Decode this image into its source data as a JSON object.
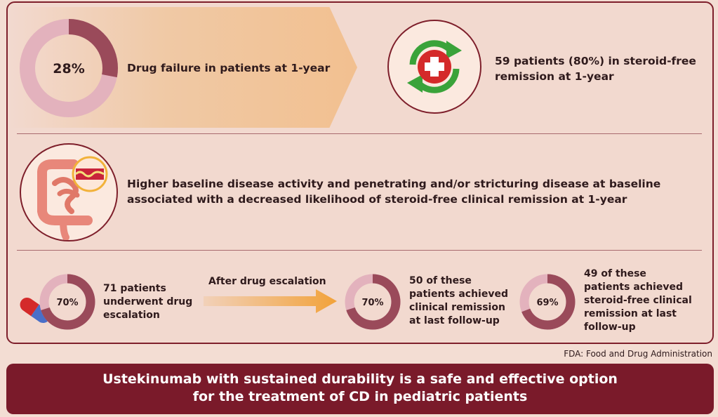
{
  "row1": {
    "donut_label": "28%",
    "donut_value": 0.28,
    "text": "Drug failure in patients at 1-year",
    "remission_text_line1": "59 patients (80%) in steroid-free",
    "remission_text_line2": "remission at 1-year"
  },
  "row2": {
    "text_line1": "Higher baseline disease activity and penetrating and/or stricturing disease at baseline",
    "text_line2": "associated with a decreased likelihood of steroid-free clinical remission at 1-year"
  },
  "row3": {
    "donut1": {
      "label": "70%",
      "value": 0.7
    },
    "escalation_text": [
      "71 patients",
      "underwent drug",
      "escalation"
    ],
    "arrow_label": "After drug escalation",
    "donut2": {
      "label": "70%",
      "value": 0.7
    },
    "text2": [
      "50 of these",
      "patients achieved",
      "clinical remission",
      "at last follow-up"
    ],
    "donut3": {
      "label": "69%",
      "value": 0.69
    },
    "text3": [
      "49 of these",
      "patients achieved",
      "steroid-free clinical",
      "remission at last",
      "follow-up"
    ]
  },
  "note": "FDA: Food and Drug Administration",
  "footer": {
    "line1": "Ustekinumab with sustained durability is a safe and effective option",
    "line2": "for the treatment of CD in pediatric patients"
  },
  "colors": {
    "accent_dark": "#9a4a5a",
    "accent_light": "#dba5b3",
    "footer_bg": "#7a1a2a",
    "arrow_orange": "#f2a23a",
    "green": "#3aa33a",
    "red": "#d42a2a"
  }
}
